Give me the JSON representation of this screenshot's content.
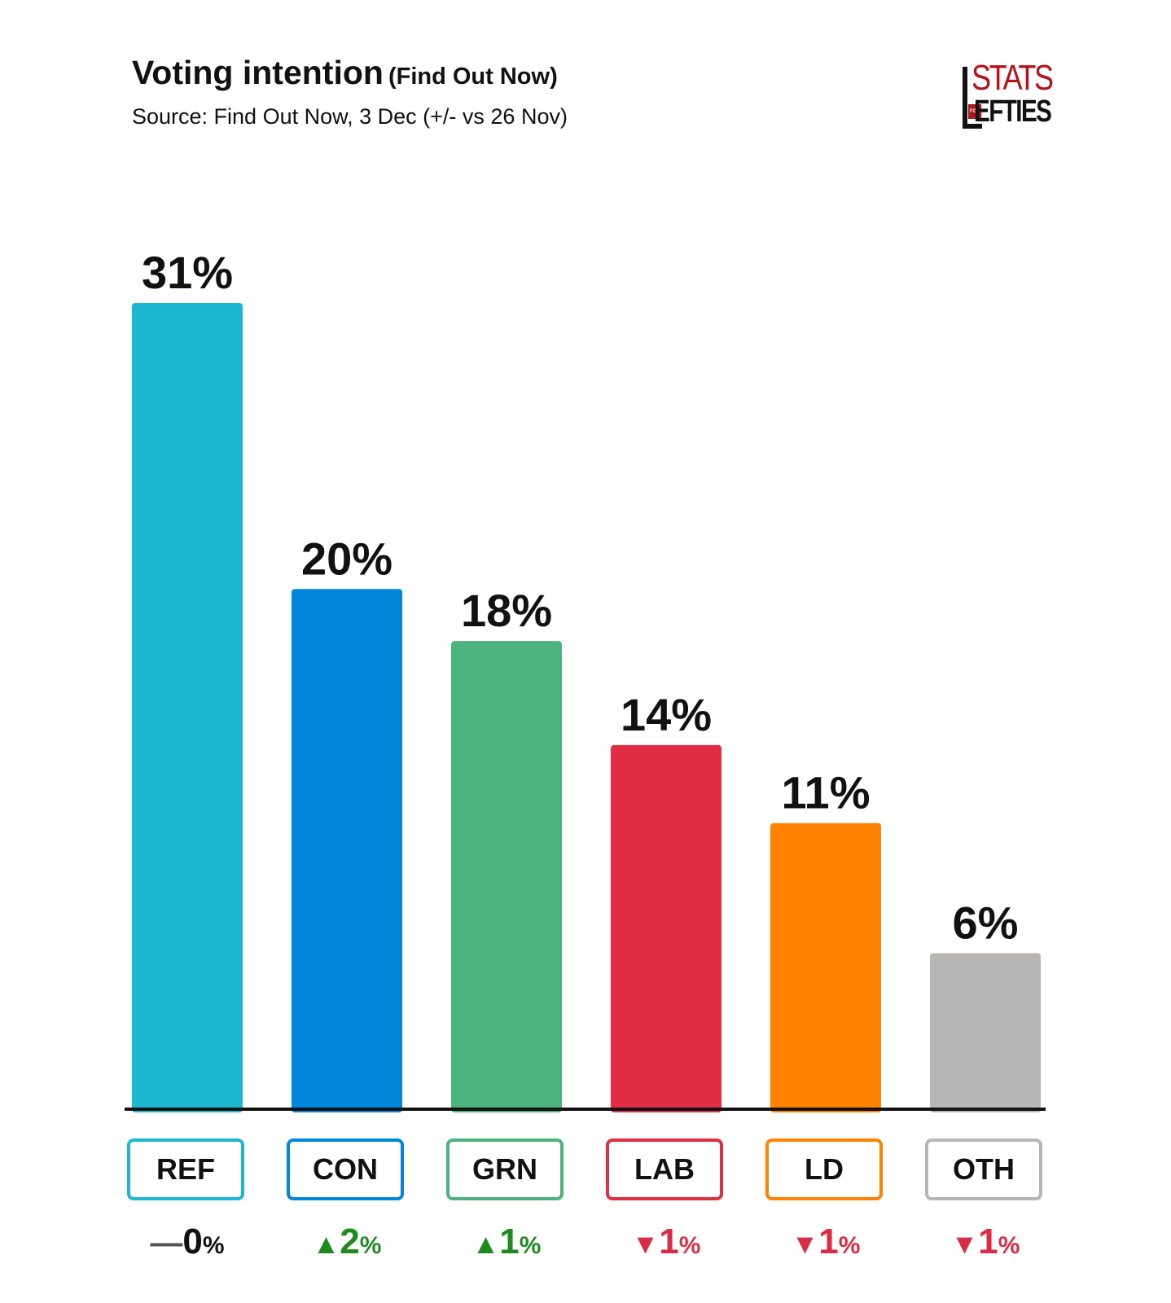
{
  "header": {
    "title": "Voting intention",
    "title_suffix": "(Find Out Now)",
    "source": "Source: Find Out Now, 3 Dec (+/- vs 26 Nov)"
  },
  "logo": {
    "line1": "STATS",
    "small": "FOR",
    "line2": "EFTIES"
  },
  "chart_data": {
    "type": "bar",
    "title": "Voting intention (Find Out Now)",
    "subtitle": "Source: Find Out Now, 3 Dec (+/- vs 26 Nov)",
    "categories": [
      "REF",
      "CON",
      "GRN",
      "LAB",
      "LD",
      "OTH"
    ],
    "values": [
      31,
      20,
      18,
      14,
      11,
      6
    ],
    "value_labels": [
      "31%",
      "20%",
      "18%",
      "14%",
      "11%",
      "6%"
    ],
    "colors": [
      "#1cb8d2",
      "#0087dc",
      "#4db37d",
      "#e02e44",
      "#ff8200",
      "#b8b6b4"
    ],
    "changes": [
      {
        "direction": "none",
        "symbol": "—",
        "value": "0",
        "unit": "%",
        "color": "#333333"
      },
      {
        "direction": "up",
        "symbol": "▲",
        "value": "2",
        "unit": "%",
        "color": "#1f8a1f"
      },
      {
        "direction": "up",
        "symbol": "▲",
        "value": "1",
        "unit": "%",
        "color": "#1f8a1f"
      },
      {
        "direction": "down",
        "symbol": "▼",
        "value": "1",
        "unit": "%",
        "color": "#d92d45"
      },
      {
        "direction": "down",
        "symbol": "▼",
        "value": "1",
        "unit": "%",
        "color": "#d92d45"
      },
      {
        "direction": "down",
        "symbol": "▼",
        "value": "1",
        "unit": "%",
        "color": "#d92d45"
      }
    ],
    "ylim": [
      0,
      31
    ],
    "xlabel": "",
    "ylabel": "",
    "grid": false,
    "legend": "none"
  }
}
